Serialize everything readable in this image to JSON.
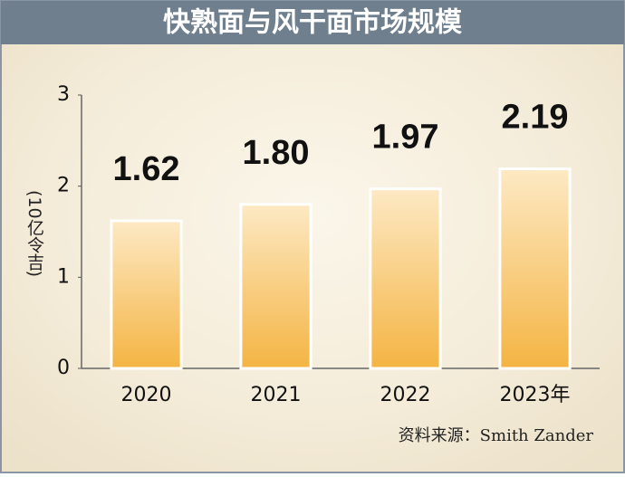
{
  "chart_data": {
    "type": "bar",
    "title": "快熟面与风干面市场规模",
    "y_label": "(10亿令吉)",
    "categories": [
      "2020",
      "2021",
      "2022",
      "2023年"
    ],
    "values": [
      1.62,
      1.8,
      1.97,
      2.19
    ],
    "value_labels": [
      "1.62",
      "1.80",
      "1.97",
      "2.19"
    ],
    "color": "#f6bd5a",
    "ylim": [
      0,
      3
    ],
    "yticks": [
      0,
      1,
      2,
      3
    ],
    "source": "资料来源：Smith Zander"
  }
}
